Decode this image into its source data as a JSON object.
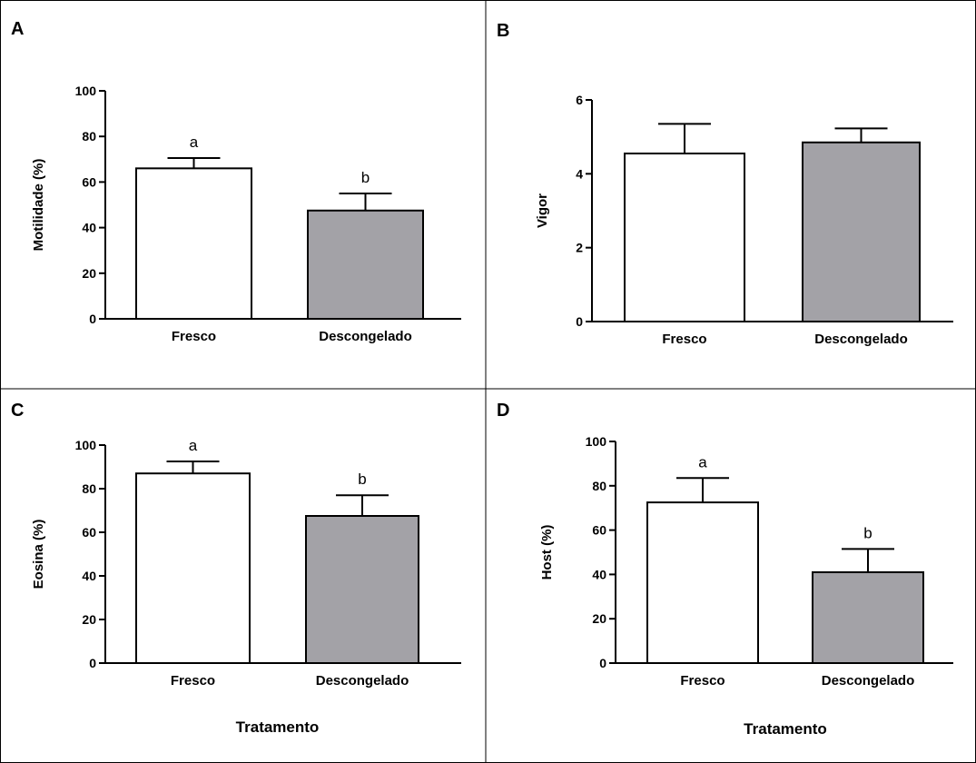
{
  "chart_data": [
    {
      "type": "bar",
      "panel": "A",
      "categories": [
        "Fresco",
        "Descongelado"
      ],
      "values": [
        66,
        47.5
      ],
      "errors": [
        4.5,
        7.5
      ],
      "significance": [
        "a",
        "b"
      ],
      "colors": [
        "#ffffff",
        "#a3a2a7"
      ],
      "ylabel": "Motilidade (%)",
      "xlabel": "",
      "ylim": [
        0,
        100
      ],
      "yticks": [
        0,
        20,
        40,
        60,
        80,
        100
      ]
    },
    {
      "type": "bar",
      "panel": "B",
      "categories": [
        "Fresco",
        "Descongelado"
      ],
      "values": [
        4.55,
        4.85
      ],
      "errors": [
        0.8,
        0.38
      ],
      "significance": [
        "",
        ""
      ],
      "colors": [
        "#ffffff",
        "#a3a2a7"
      ],
      "ylabel": "Vigor",
      "xlabel": "",
      "ylim": [
        0,
        6
      ],
      "yticks": [
        0,
        2,
        4,
        6
      ]
    },
    {
      "type": "bar",
      "panel": "C",
      "categories": [
        "Fresco",
        "Descongelado"
      ],
      "values": [
        87,
        67.5
      ],
      "errors": [
        5.5,
        9.5
      ],
      "significance": [
        "a",
        "b"
      ],
      "colors": [
        "#ffffff",
        "#a3a2a7"
      ],
      "ylabel": "Eosina (%)",
      "xlabel": "Tratamento",
      "ylim": [
        0,
        100
      ],
      "yticks": [
        0,
        20,
        40,
        60,
        80,
        100
      ]
    },
    {
      "type": "bar",
      "panel": "D",
      "categories": [
        "Fresco",
        "Descongelado"
      ],
      "values": [
        72.5,
        41
      ],
      "errors": [
        11,
        10.5
      ],
      "significance": [
        "a",
        "b"
      ],
      "colors": [
        "#ffffff",
        "#a3a2a7"
      ],
      "ylabel": "Host (%)",
      "xlabel": "Tratamento",
      "ylim": [
        0,
        100
      ],
      "yticks": [
        0,
        20,
        40,
        60,
        80,
        100
      ]
    }
  ]
}
